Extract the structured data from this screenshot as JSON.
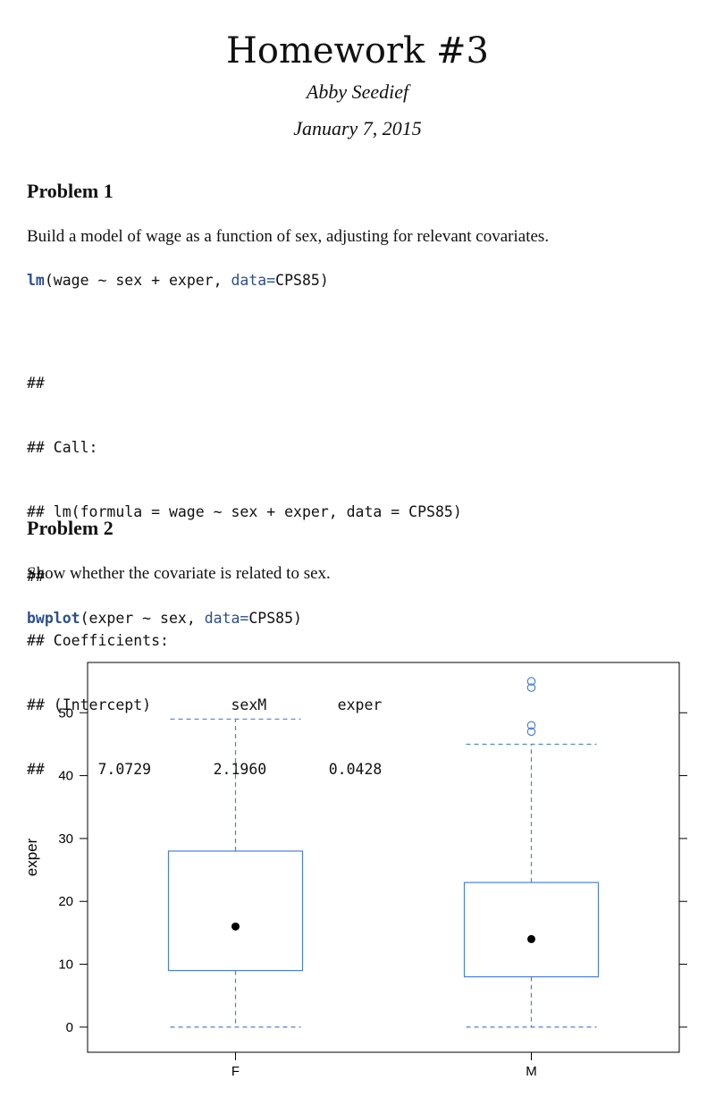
{
  "header": {
    "title": "Homework #3",
    "author": "Abby Seedief",
    "date": "January 7, 2015"
  },
  "problem1": {
    "heading": "Problem 1",
    "text": "Build a model of wage as a function of sex, adjusting for relevant covariates.",
    "code": {
      "fn": "lm",
      "pre": "(wage ~ sex + exper, ",
      "arg": "data=",
      "post": "CPS85)"
    },
    "output": [
      "##",
      "## Call:",
      "## lm(formula = wage ~ sex + exper, data = CPS85)",
      "##",
      "## Coefficients:",
      "## (Intercept)         sexM        exper",
      "##      7.0729       2.1960       0.0428"
    ]
  },
  "problem2": {
    "heading": "Problem 2",
    "text": "Show whether the covariate is related to sex.",
    "code": {
      "fn": "bwplot",
      "pre": "(exper ~ sex, ",
      "arg": "data=",
      "post": "CPS85)"
    }
  },
  "chart_data": {
    "type": "boxplot",
    "title": "",
    "xlabel": "",
    "ylabel": "exper",
    "categories": [
      "F",
      "M"
    ],
    "ylim": [
      -4,
      58
    ],
    "yticks": [
      0,
      10,
      20,
      30,
      40,
      50
    ],
    "color": "#4a7fe0",
    "boxes": [
      {
        "category": "F",
        "whisker_low": 0,
        "q1": 9,
        "median": 16,
        "q3": 28,
        "whisker_high": 49,
        "outliers": []
      },
      {
        "category": "M",
        "whisker_low": 0,
        "q1": 8,
        "median": 14,
        "q3": 23,
        "whisker_high": 45,
        "outliers": [
          47,
          48,
          54,
          55
        ]
      }
    ]
  }
}
